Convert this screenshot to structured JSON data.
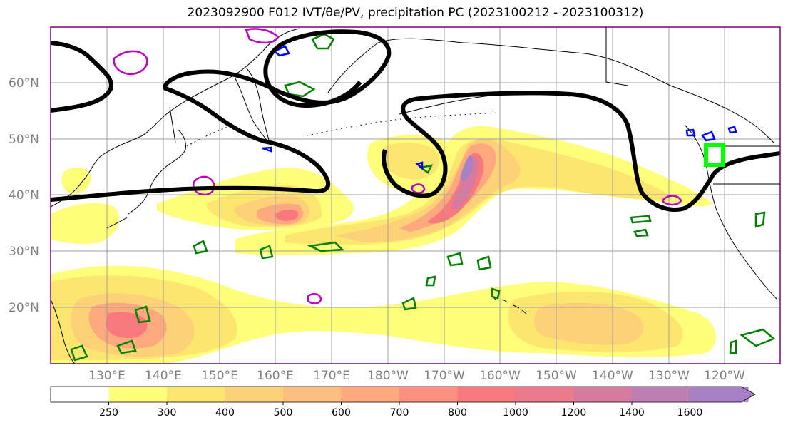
{
  "title": "2023092900 F012 IVT/θe/PV, precipitation PC (2023100212 - 2023100312)",
  "lat_labels": [
    "60°N",
    "50°N",
    "40°N",
    "30°N",
    "20°N"
  ],
  "lon_labels": [
    "130°E",
    "140°E",
    "150°E",
    "160°E",
    "170°E",
    "180°W",
    "170°W",
    "160°W",
    "150°W",
    "140°W",
    "130°W",
    "120°W"
  ],
  "colorbar": {
    "levels": [
      "250",
      "300",
      "400",
      "500",
      "600",
      "700",
      "800",
      "1000",
      "1200",
      "1400",
      "1600"
    ],
    "colors": [
      "#ffffff",
      "#fffe7a",
      "#fde66f",
      "#fdd178",
      "#fdbd7e",
      "#fda87e",
      "#fc9080",
      "#f8787c",
      "#ea7a8c",
      "#d57b9f",
      "#be7eb5",
      "#a781c6"
    ]
  },
  "legend_colors": {
    "ivt_contour": "#000000",
    "theta_e": "#008000",
    "pv_high": "#c000c0",
    "pv_low": "#0000ff",
    "target_box": "#00ff00"
  }
}
